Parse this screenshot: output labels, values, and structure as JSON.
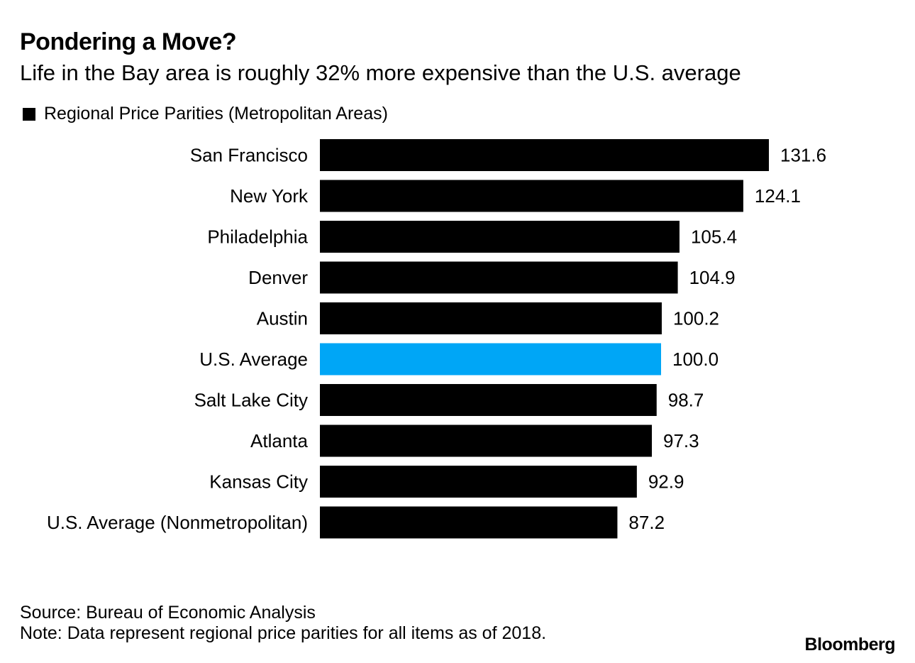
{
  "title": "Pondering a Move?",
  "subtitle": "Life in the Bay area is roughly 32% more expensive than the U.S. average",
  "legend_label": "Regional Price Parities (Metropolitan Areas)",
  "source": "Source: Bureau of Economic Analysis",
  "note": "Note: Data represent regional price parities for all items as of 2018.",
  "brand": "Bloomberg",
  "colors": {
    "bar": "#000000",
    "highlight": "#00a6f6",
    "text": "#000000",
    "background": "#ffffff"
  },
  "chart_data": {
    "type": "bar",
    "orientation": "horizontal",
    "categories": [
      "San Francisco",
      "New York",
      "Philadelphia",
      "Denver",
      "Austin",
      "U.S. Average",
      "Salt Lake City",
      "Atlanta",
      "Kansas City",
      "U.S. Average (Nonmetropolitan)"
    ],
    "values": [
      131.6,
      124.1,
      105.4,
      104.9,
      100.2,
      100.0,
      98.7,
      97.3,
      92.9,
      87.2
    ],
    "value_labels": [
      "131.6",
      "124.1",
      "105.4",
      "104.9",
      "100.2",
      "100.0",
      "98.7",
      "97.3",
      "92.9",
      "87.2"
    ],
    "highlight_category": "U.S. Average",
    "xlim": [
      0,
      131.6
    ],
    "grid": false,
    "legend_position": "top-left"
  }
}
